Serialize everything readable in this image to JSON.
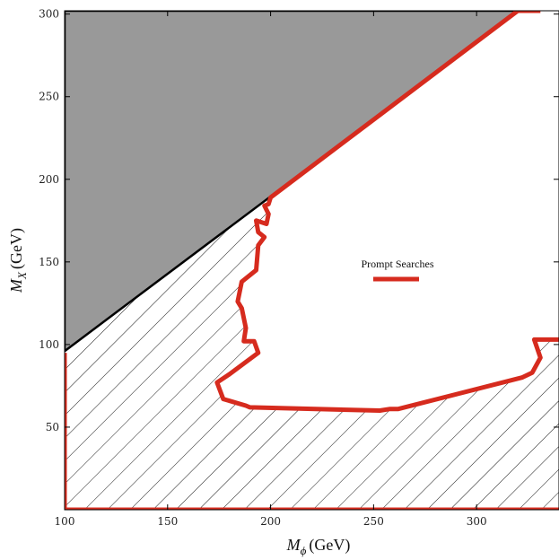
{
  "chart_data": {
    "type": "area",
    "title": "",
    "xlabel": {
      "main": "M",
      "sub": "ϕ",
      "unit": "(GeV)"
    },
    "ylabel": {
      "main": "M",
      "sub": "X",
      "unit": "(GeV)"
    },
    "xlim": [
      100,
      340
    ],
    "ylim": [
      0,
      302
    ],
    "x_ticks": [
      "100",
      "150",
      "200",
      "250",
      "300"
    ],
    "y_ticks": [
      "50",
      "100",
      "150",
      "200",
      "250",
      "300"
    ],
    "grid": false,
    "legend": {
      "placement": "center-right",
      "entries": [
        "Prompt Searches"
      ]
    },
    "colors": {
      "excluded_region": "#999999",
      "prompt_line": "#d62b1e",
      "hatch": "#000000"
    },
    "series": [
      {
        "name": "excluded-kinematic",
        "kind": "filled-region",
        "x": [
          100,
          100,
          320
        ],
        "y": [
          96,
          302,
          302
        ]
      },
      {
        "name": "Prompt Searches",
        "kind": "contour",
        "x": [
          100,
          100,
          340,
          340,
          328,
          331,
          327,
          322,
          262,
          258,
          253,
          190,
          188,
          177,
          174,
          180,
          194,
          192,
          187,
          188,
          186,
          184,
          186,
          193,
          194,
          197,
          194,
          193,
          198,
          199,
          197,
          199,
          200,
          320,
          324,
          331
        ],
        "y": [
          0,
          95,
          0,
          103,
          103,
          92,
          83,
          80,
          61,
          61,
          60,
          62,
          63,
          67,
          77,
          82,
          95,
          102,
          102,
          110,
          122,
          126,
          138,
          145,
          160,
          165,
          168,
          175,
          173,
          179,
          184,
          185,
          189,
          302,
          302,
          302
        ]
      }
    ]
  }
}
